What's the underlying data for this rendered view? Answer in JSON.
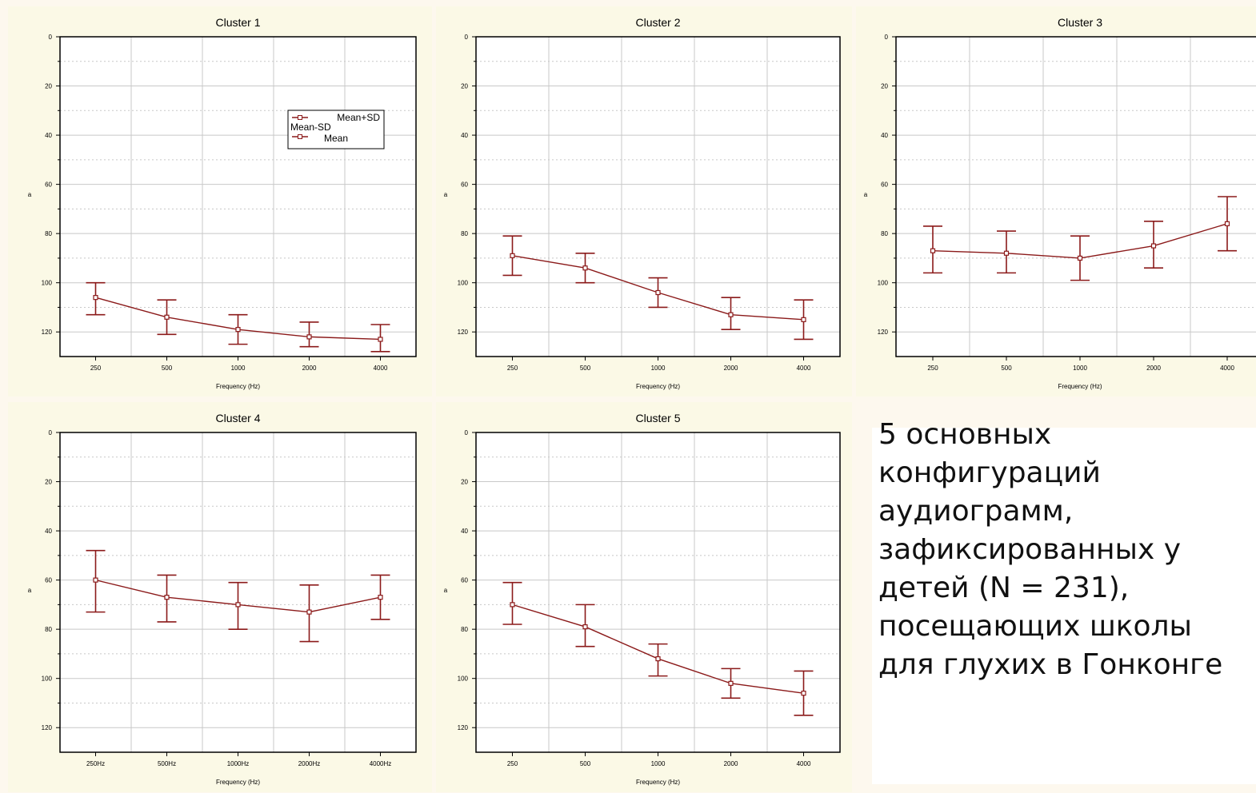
{
  "chart_data": [
    {
      "type": "line",
      "title": "Cluster 1",
      "xlabel": "Frequency (Hz)",
      "ylabel": "a",
      "categories": [
        "250",
        "500",
        "1000",
        "2000",
        "4000"
      ],
      "ylim": [
        0,
        130
      ],
      "y_ticks": [
        0,
        20,
        40,
        60,
        80,
        100,
        120
      ],
      "y_inverted": true,
      "grid": true,
      "legend": {
        "placement": "top-right",
        "entries": [
          "Mean+SD",
          "Mean-SD",
          "Mean"
        ]
      },
      "series": [
        {
          "name": "Mean",
          "values": [
            106,
            114,
            119,
            122,
            123
          ]
        },
        {
          "name": "Mean+SD",
          "values": [
            113,
            121,
            125,
            126,
            128
          ]
        },
        {
          "name": "Mean-SD",
          "values": [
            100,
            107,
            113,
            116,
            117
          ]
        }
      ]
    },
    {
      "type": "line",
      "title": "Cluster 2",
      "xlabel": "Frequency (Hz)",
      "ylabel": "a",
      "categories": [
        "250",
        "500",
        "1000",
        "2000",
        "4000"
      ],
      "ylim": [
        0,
        130
      ],
      "y_ticks": [
        0,
        20,
        40,
        60,
        80,
        100,
        120
      ],
      "y_inverted": true,
      "grid": true,
      "series": [
        {
          "name": "Mean",
          "values": [
            89,
            94,
            104,
            113,
            115
          ]
        },
        {
          "name": "Mean+SD",
          "values": [
            97,
            100,
            110,
            119,
            123
          ]
        },
        {
          "name": "Mean-SD",
          "values": [
            81,
            88,
            98,
            106,
            107
          ]
        }
      ]
    },
    {
      "type": "line",
      "title": "Cluster 3",
      "xlabel": "Frequency (Hz)",
      "ylabel": "a",
      "categories": [
        "250",
        "500",
        "1000",
        "2000",
        "4000"
      ],
      "ylim": [
        0,
        130
      ],
      "y_ticks": [
        0,
        20,
        40,
        60,
        80,
        100,
        120
      ],
      "y_inverted": true,
      "grid": true,
      "series": [
        {
          "name": "Mean",
          "values": [
            87,
            88,
            90,
            85,
            76
          ]
        },
        {
          "name": "Mean+SD",
          "values": [
            96,
            96,
            99,
            94,
            87
          ]
        },
        {
          "name": "Mean-SD",
          "values": [
            77,
            79,
            81,
            75,
            65
          ]
        }
      ]
    },
    {
      "type": "line",
      "title": "Cluster 4",
      "xlabel": "Frequency (Hz)",
      "ylabel": "a",
      "categories": [
        "250Hz",
        "500Hz",
        "1000Hz",
        "2000Hz",
        "4000Hz"
      ],
      "ylim": [
        0,
        130
      ],
      "y_ticks": [
        0,
        20,
        40,
        60,
        80,
        100,
        120
      ],
      "y_inverted": true,
      "grid": true,
      "series": [
        {
          "name": "Mean",
          "values": [
            60,
            67,
            70,
            73,
            67
          ]
        },
        {
          "name": "Mean+SD",
          "values": [
            73,
            77,
            80,
            85,
            76
          ]
        },
        {
          "name": "Mean-SD",
          "values": [
            48,
            58,
            61,
            62,
            58
          ]
        }
      ]
    },
    {
      "type": "line",
      "title": "Cluster 5",
      "xlabel": "Frequency (Hz)",
      "ylabel": "a",
      "categories": [
        "250",
        "500",
        "1000",
        "2000",
        "4000"
      ],
      "ylim": [
        0,
        130
      ],
      "y_ticks": [
        0,
        20,
        40,
        60,
        80,
        100,
        120
      ],
      "y_inverted": true,
      "grid": true,
      "series": [
        {
          "name": "Mean",
          "values": [
            70,
            79,
            92,
            102,
            106
          ]
        },
        {
          "name": "Mean+SD",
          "values": [
            78,
            87,
            99,
            108,
            115
          ]
        },
        {
          "name": "Mean-SD",
          "values": [
            61,
            70,
            86,
            96,
            97
          ]
        }
      ]
    }
  ],
  "caption": "5 основных\nконфигураций\nаудиограмм,\nзафиксированных у\nдетей (N = 231),\nпосещающих школы\nдля глухих в Гонконге",
  "colors": {
    "series": "#8b1a1a",
    "panel_background": "#fbf9e6",
    "plot_background": "#ffffff",
    "grid": "#c8c8c8",
    "axis": "#000000"
  }
}
